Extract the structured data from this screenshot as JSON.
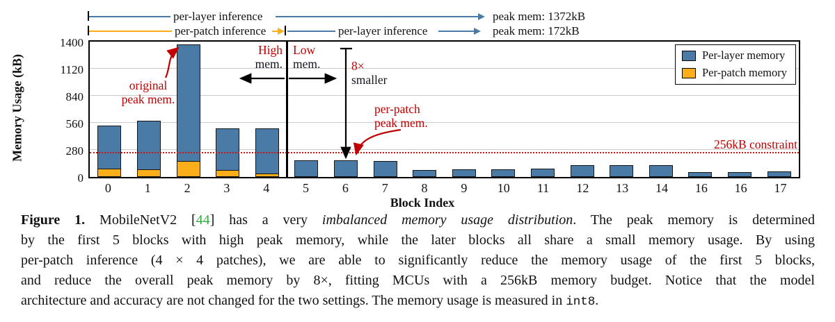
{
  "colors": {
    "per_layer_blue": "#4a7ba6",
    "per_patch_orange": "#f9ae1a",
    "annotation_red": "#c00000",
    "constraint_red": "#cc1111",
    "citation_green": "#33a93f"
  },
  "figure": {
    "header": {
      "full_range_label": "per-layer inference",
      "full_range_peak": "peak mem: 1372kB",
      "patch_range_label": "per-patch inference",
      "layer_range_label": "per-layer inference",
      "patch_range_peak": "peak mem: 172kB"
    },
    "annotations": {
      "original_peak": [
        "original",
        "peak mem."
      ],
      "high_mem": [
        "High",
        "mem."
      ],
      "low_mem": [
        "Low",
        "mem."
      ],
      "smaller": [
        "8×",
        "smaller"
      ],
      "patch_peak": [
        "per-patch",
        "peak mem."
      ],
      "constraint": "256kB constraint"
    }
  },
  "chart_data": {
    "type": "bar",
    "title": "",
    "xlabel": "Block Index",
    "ylabel": "Memory Usage (kB)",
    "ylim": [
      0,
      1400
    ],
    "yticks": [
      0,
      280,
      560,
      840,
      1120,
      1400
    ],
    "grid": true,
    "legend_position": "top-right",
    "categories": [
      "0",
      "1",
      "2",
      "3",
      "4",
      "5",
      "6",
      "7",
      "8",
      "9",
      "10",
      "11",
      "12",
      "13",
      "14",
      "16",
      "16",
      "17"
    ],
    "series": [
      {
        "name": "Per-layer memory",
        "color": "#4a7ba6",
        "values": [
          530,
          580,
          1372,
          505,
          505,
          170,
          172,
          165,
          75,
          78,
          80,
          85,
          120,
          120,
          125,
          50,
          50,
          58
        ]
      },
      {
        "name": "Per-patch memory",
        "color": "#f9ae1a",
        "values": [
          85,
          80,
          165,
          70,
          35,
          null,
          null,
          null,
          null,
          null,
          null,
          null,
          null,
          null,
          null,
          null,
          null,
          null
        ]
      }
    ],
    "reference_line": {
      "value": 256,
      "label": "256kB constraint",
      "style": "dotted",
      "color": "#cc1111"
    }
  },
  "caption": {
    "lines": [
      [
        {
          "t": "Figure 1.",
          "s": "b"
        },
        {
          "t": " MobileNetV2 [",
          "s": "n"
        },
        {
          "t": "44",
          "s": "g"
        },
        {
          "t": "] has a very ",
          "s": "n"
        },
        {
          "t": "imbalanced memory usage distribution",
          "s": "i"
        },
        {
          "t": ". The peak memory is determined",
          "s": "n"
        }
      ],
      [
        {
          "t": "by the first 5 blocks with high peak memory, while the later blocks all share a small memory usage. By using",
          "s": "n"
        }
      ],
      [
        {
          "t": "per-patch inference (4 × 4 patches), we are able to significantly reduce the memory usage of the first 5 blocks,",
          "s": "n"
        }
      ],
      [
        {
          "t": "and reduce the overall peak memory by 8×, fitting MCUs with a 256kB memory budget. Notice that the model",
          "s": "n"
        }
      ],
      [
        {
          "t": "architecture and accuracy are not changed for the two settings. The memory usage is measured in ",
          "s": "n"
        },
        {
          "t": "int8",
          "s": "m"
        },
        {
          "t": ".",
          "s": "n"
        }
      ]
    ]
  }
}
